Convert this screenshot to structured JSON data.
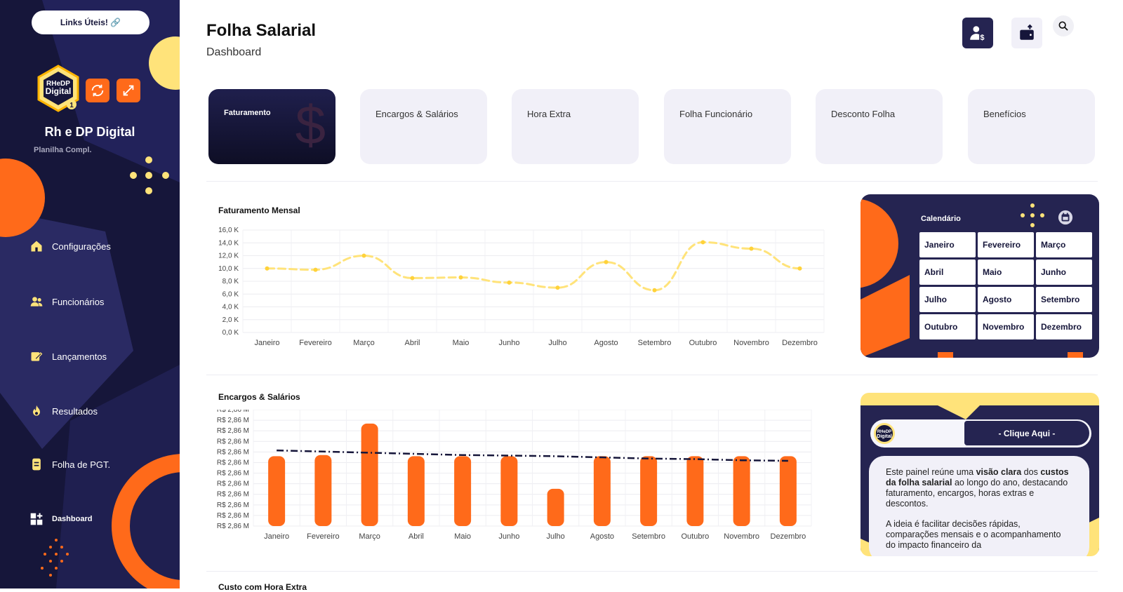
{
  "sidebar": {
    "links_label": "Links Úteis! 🔗",
    "logo_text_1": "RHeDP",
    "logo_text_2": "Digital",
    "logo_badge": "1",
    "brand": "Rh e DP Digital",
    "brand_sub": "Planilha Compl.",
    "nav": [
      {
        "label": "Configurações",
        "icon": "home-icon"
      },
      {
        "label": "Funcionários",
        "icon": "users-icon"
      },
      {
        "label": "Lançamentos",
        "icon": "edit-icon"
      },
      {
        "label": "Resultados",
        "icon": "flame-icon"
      },
      {
        "label": "Folha de PGT.",
        "icon": "document-icon"
      },
      {
        "label": "Dashboard",
        "icon": "dashboard-icon"
      }
    ]
  },
  "header": {
    "title": "Folha Salarial",
    "subtitle": "Dashboard"
  },
  "tabs": [
    {
      "label": "Faturamento",
      "active": true
    },
    {
      "label": "Encargos & Salários"
    },
    {
      "label": "Hora Extra"
    },
    {
      "label": "Folha Funcionário"
    },
    {
      "label": "Desconto Folha"
    },
    {
      "label": "Benefícios"
    }
  ],
  "tab_active_glyph": "$",
  "colors": {
    "navy": "#252451",
    "orange": "#ff6a1a",
    "yellow": "#ffe37a"
  },
  "chart_data": [
    {
      "type": "line",
      "title": "Faturamento Mensal",
      "categories": [
        "Janeiro",
        "Fevereiro",
        "Março",
        "Abril",
        "Maio",
        "Junho",
        "Julho",
        "Agosto",
        "Setembro",
        "Outubro",
        "Novembro",
        "Dezembro"
      ],
      "values": [
        10.0,
        9.8,
        12.0,
        8.5,
        8.6,
        7.8,
        7.0,
        11.0,
        6.6,
        14.1,
        13.1,
        10.0
      ],
      "ylabels": [
        "16,0 K",
        "14,0 K",
        "12,0 K",
        "10,0 K",
        "8,0 K",
        "6,0 K",
        "4,0 K",
        "2,0 K",
        "0,0 K"
      ],
      "ylim": [
        0,
        16
      ],
      "grid": true
    },
    {
      "type": "bar",
      "title": "Encargos & Salários",
      "categories": [
        "Janeiro",
        "Fevereiro",
        "Março",
        "Abril",
        "Maio",
        "Junho",
        "Julho",
        "Agosto",
        "Setembro",
        "Outubro",
        "Novembro",
        "Dezembro"
      ],
      "values": [
        0.6,
        0.61,
        0.88,
        0.6,
        0.6,
        0.6,
        0.32,
        0.6,
        0.6,
        0.6,
        0.6,
        0.6
      ],
      "trend": [
        0.65,
        0.64,
        0.63,
        0.62,
        0.61,
        0.605,
        0.6,
        0.59,
        0.58,
        0.575,
        0.565,
        0.56
      ],
      "ylabels": [
        "R$ 2,86 M",
        "R$ 2,86 M",
        "R$ 2,86 M",
        "R$ 2,86 M",
        "R$ 2,86 M",
        "R$ 2,86 M",
        "R$ 2,86 M",
        "R$ 2,86 M",
        "R$ 2,86 M",
        "R$ 2,86 M",
        "R$ 2,86 M",
        "R$ 2,86 M"
      ],
      "grid": true
    }
  ],
  "calendar": {
    "title": "Calendário",
    "months": [
      "Janeiro",
      "Fevereiro",
      "Março",
      "Abril",
      "Maio",
      "Junho",
      "Julho",
      "Agosto",
      "Setembro",
      "Outubro",
      "Novembro",
      "Dezembro"
    ]
  },
  "info": {
    "button": "- Clique Aqui -",
    "logo_text_1": "RHeDP",
    "logo_text_2": "Digital",
    "p1_a": "Este painel reúne uma ",
    "p1_b": "visão clara",
    "p1_c": " dos ",
    "p1_d": "custos da folha salarial",
    "p1_e": " ao longo do ano, destacando faturamento, encargos, horas extras e descontos.",
    "p2": "A ideia é facilitar decisões rápidas, comparações mensais e o acompanhamento do impacto financeiro da"
  },
  "next_section_title": "Custo com Hora Extra"
}
